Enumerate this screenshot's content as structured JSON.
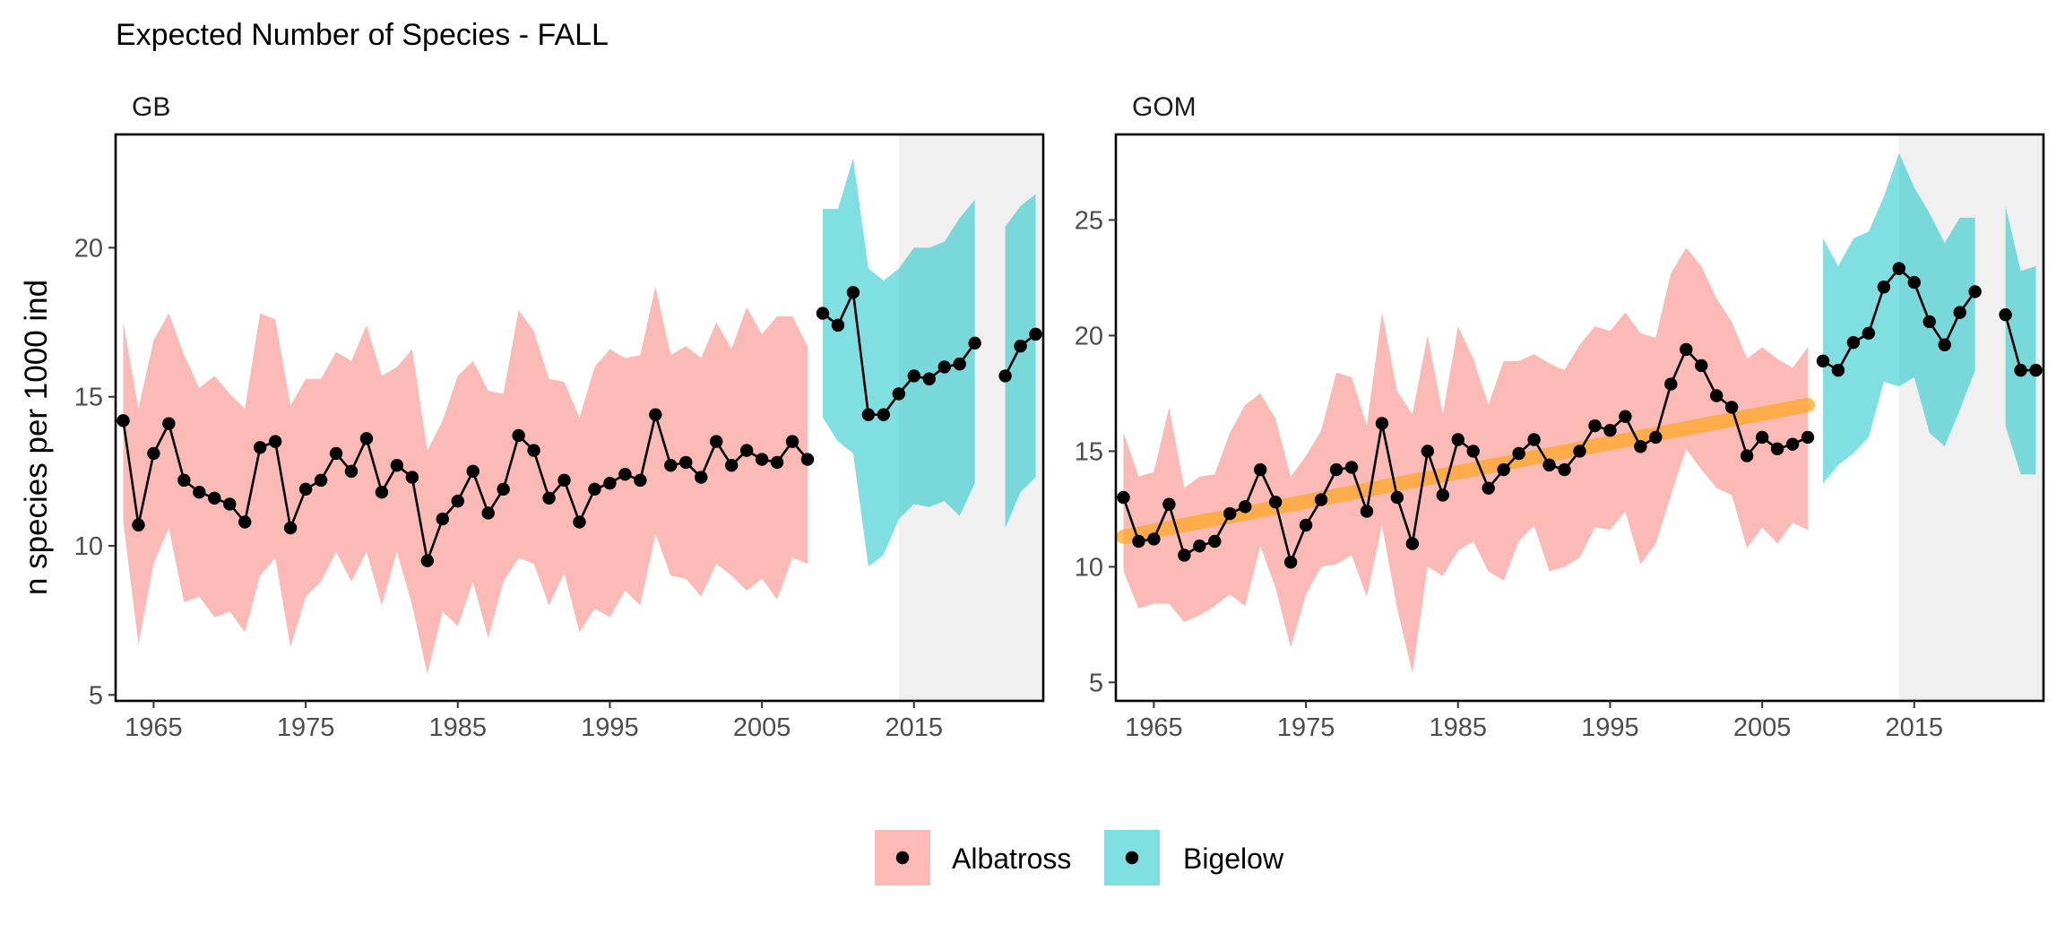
{
  "title": "Expected Number of Species - FALL",
  "ylabel": "n species per 1000 ind",
  "colors": {
    "albatross": "#F8766D",
    "bigelow": "#00BFC4",
    "trend": "#FFA726",
    "recent_shade": "#EBEBEB",
    "line": "#000000"
  },
  "legend": {
    "placement": "bottom",
    "items": [
      {
        "label": "Albatross",
        "key": "albatross"
      },
      {
        "label": "Bigelow",
        "key": "bigelow"
      }
    ]
  },
  "chart_data": [
    {
      "type": "line",
      "panel": "GB",
      "xlim": [
        1962.5,
        2023.5
      ],
      "ylim": [
        4.8,
        23.8
      ],
      "xticks": [
        1965,
        1975,
        1985,
        1995,
        2005,
        2015
      ],
      "yticks": [
        5,
        10,
        15,
        20
      ],
      "shaded_region": [
        2014,
        2023.5
      ],
      "trend": null,
      "series": [
        {
          "name": "Albatross",
          "color_key": "albatross",
          "x": [
            1963,
            1964,
            1965,
            1966,
            1967,
            1968,
            1969,
            1970,
            1971,
            1972,
            1973,
            1974,
            1975,
            1976,
            1977,
            1978,
            1979,
            1980,
            1981,
            1982,
            1983,
            1984,
            1985,
            1986,
            1987,
            1988,
            1989,
            1990,
            1991,
            1992,
            1993,
            1994,
            1995,
            1996,
            1997,
            1998,
            1999,
            2000,
            2001,
            2002,
            2003,
            2004,
            2005,
            2006,
            2007,
            2008
          ],
          "y": [
            14.2,
            10.7,
            13.1,
            14.1,
            12.2,
            11.8,
            11.6,
            11.4,
            10.8,
            13.3,
            13.5,
            10.6,
            11.9,
            12.2,
            13.1,
            12.5,
            13.6,
            11.8,
            12.7,
            12.3,
            9.5,
            10.9,
            11.5,
            12.5,
            11.1,
            11.9,
            13.7,
            13.2,
            11.6,
            12.2,
            10.8,
            11.9,
            12.1,
            12.4,
            12.2,
            14.4,
            12.7,
            12.8,
            12.3,
            13.5,
            12.7,
            13.2,
            12.9,
            12.8,
            13.5,
            12.9
          ],
          "lower": [
            10.8,
            6.7,
            9.4,
            10.6,
            8.1,
            8.3,
            7.6,
            7.8,
            7.1,
            9.0,
            9.6,
            6.6,
            8.3,
            8.8,
            9.8,
            8.8,
            9.8,
            8.0,
            9.8,
            8.0,
            5.7,
            7.8,
            7.3,
            8.8,
            6.9,
            8.8,
            9.6,
            9.4,
            8.0,
            9.1,
            7.1,
            7.9,
            7.6,
            8.5,
            8.0,
            10.4,
            9.0,
            8.9,
            8.3,
            9.4,
            9.0,
            8.5,
            8.9,
            8.2,
            9.6,
            9.4
          ],
          "upper": [
            17.5,
            14.6,
            16.9,
            17.8,
            16.4,
            15.3,
            15.7,
            15.1,
            14.6,
            17.8,
            17.6,
            14.7,
            15.6,
            15.6,
            16.5,
            16.2,
            17.4,
            15.7,
            16.0,
            16.6,
            13.2,
            14.2,
            15.7,
            16.2,
            15.2,
            15.1,
            17.9,
            17.2,
            15.6,
            15.5,
            14.3,
            16.0,
            16.6,
            16.3,
            16.4,
            18.7,
            16.4,
            16.7,
            16.3,
            17.5,
            16.6,
            18.0,
            17.1,
            17.7,
            17.7,
            16.7
          ]
        },
        {
          "name": "Bigelow",
          "color_key": "bigelow",
          "x": [
            2009,
            2010,
            2011,
            2012,
            2013,
            2014,
            2015,
            2016,
            2017,
            2018,
            2019,
            2020,
            2021,
            2022,
            2023
          ],
          "y": [
            17.8,
            17.4,
            18.5,
            14.4,
            14.4,
            15.1,
            15.7,
            15.6,
            16.0,
            16.1,
            16.8,
            null,
            15.7,
            16.7,
            17.1
          ],
          "lower": [
            14.3,
            13.5,
            13.1,
            9.3,
            9.7,
            10.9,
            11.4,
            11.3,
            11.5,
            11.0,
            12.1,
            null,
            10.6,
            11.8,
            12.3
          ],
          "upper": [
            21.3,
            21.3,
            23.0,
            19.3,
            18.9,
            19.3,
            20.0,
            20.0,
            20.2,
            21.0,
            21.6,
            null,
            20.7,
            21.4,
            21.8
          ]
        }
      ]
    },
    {
      "type": "line",
      "panel": "GOM",
      "xlim": [
        1962.5,
        2023.5
      ],
      "ylim": [
        4.2,
        28.7
      ],
      "xticks": [
        1965,
        1975,
        1985,
        1995,
        2005,
        2015
      ],
      "yticks": [
        5,
        10,
        15,
        20,
        25
      ],
      "shaded_region": [
        2014,
        2023.5
      ],
      "trend": {
        "x": [
          1963,
          2008
        ],
        "y": [
          11.3,
          17.0
        ]
      },
      "series": [
        {
          "name": "Albatross",
          "color_key": "albatross",
          "x": [
            1963,
            1964,
            1965,
            1966,
            1967,
            1968,
            1969,
            1970,
            1971,
            1972,
            1973,
            1974,
            1975,
            1976,
            1977,
            1978,
            1979,
            1980,
            1981,
            1982,
            1983,
            1984,
            1985,
            1986,
            1987,
            1988,
            1989,
            1990,
            1991,
            1992,
            1993,
            1994,
            1995,
            1996,
            1997,
            1998,
            1999,
            2000,
            2001,
            2002,
            2003,
            2004,
            2005,
            2006,
            2007,
            2008
          ],
          "y": [
            13.0,
            11.1,
            11.2,
            12.7,
            10.5,
            10.9,
            11.1,
            12.3,
            12.6,
            14.2,
            12.8,
            10.2,
            11.8,
            12.9,
            14.2,
            14.3,
            12.4,
            16.2,
            13.0,
            11.0,
            15.0,
            13.1,
            15.5,
            15.0,
            13.4,
            14.2,
            14.9,
            15.5,
            14.4,
            14.2,
            15.0,
            16.1,
            15.9,
            16.5,
            15.2,
            15.6,
            17.9,
            19.4,
            18.7,
            17.4,
            16.9,
            14.8,
            15.6,
            15.1,
            15.3,
            15.6
          ],
          "lower": [
            9.8,
            8.2,
            8.4,
            8.4,
            7.6,
            7.9,
            8.3,
            8.8,
            8.3,
            10.9,
            9.1,
            6.5,
            8.8,
            10.0,
            10.1,
            10.5,
            8.7,
            11.8,
            8.2,
            5.4,
            10.0,
            9.6,
            10.7,
            11.1,
            9.8,
            9.4,
            11.1,
            11.8,
            9.8,
            10.0,
            10.4,
            11.7,
            11.6,
            12.4,
            10.1,
            11.0,
            13.1,
            15.1,
            14.2,
            13.4,
            13.1,
            10.8,
            11.7,
            11.0,
            11.9,
            11.6
          ],
          "upper": [
            15.8,
            13.9,
            14.1,
            16.9,
            13.4,
            13.9,
            14.0,
            15.8,
            17.0,
            17.5,
            16.4,
            13.9,
            14.8,
            15.9,
            18.4,
            18.2,
            16.1,
            21.0,
            17.6,
            16.6,
            20.0,
            16.6,
            20.4,
            19.0,
            17.0,
            18.9,
            18.9,
            19.2,
            18.8,
            18.5,
            19.6,
            20.4,
            20.2,
            21.0,
            20.1,
            19.9,
            22.7,
            23.8,
            23.0,
            21.6,
            20.6,
            19.0,
            19.5,
            19.0,
            18.6,
            19.5
          ]
        },
        {
          "name": "Bigelow",
          "color_key": "bigelow",
          "x": [
            2009,
            2010,
            2011,
            2012,
            2013,
            2014,
            2015,
            2016,
            2017,
            2018,
            2019,
            2020,
            2021,
            2022,
            2023
          ],
          "y": [
            18.9,
            18.5,
            19.7,
            20.1,
            22.1,
            22.9,
            22.3,
            20.6,
            19.6,
            21.0,
            21.9,
            null,
            20.9,
            18.5,
            18.5
          ],
          "lower": [
            13.6,
            14.4,
            14.9,
            15.6,
            18.0,
            17.8,
            18.2,
            15.8,
            15.2,
            16.8,
            18.5,
            null,
            16.1,
            14.0,
            14.0
          ],
          "upper": [
            24.2,
            23.0,
            24.2,
            24.5,
            26.0,
            27.9,
            26.4,
            25.3,
            24.0,
            25.1,
            25.1,
            null,
            25.6,
            22.8,
            23.0
          ]
        }
      ]
    }
  ]
}
